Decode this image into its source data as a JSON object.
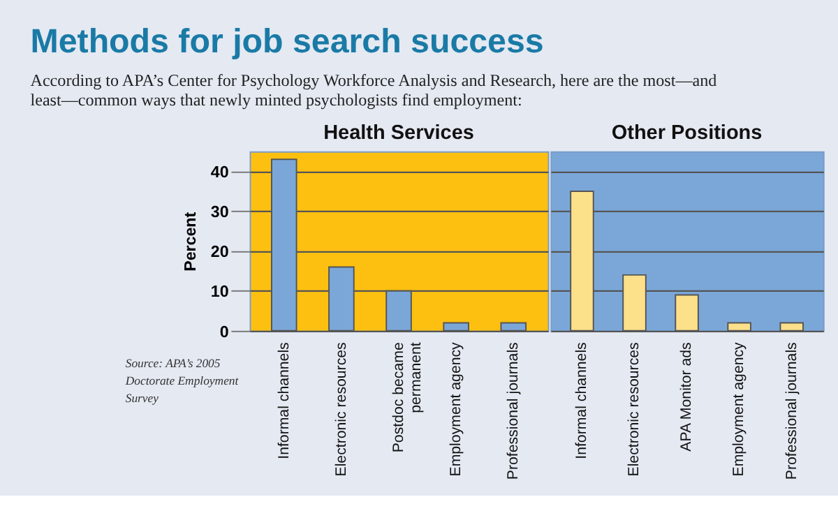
{
  "chart_data": [
    {
      "type": "bar",
      "title": "Health Services",
      "ylabel": "Percent",
      "categories": [
        "Informal channels",
        "Electronic resources",
        "Postdoc became permanent",
        "Employment agency",
        "Professional journals"
      ],
      "values": [
        43,
        16,
        10,
        2,
        2
      ],
      "color": "#7ba7d8",
      "ylim": [
        0,
        45
      ],
      "yticks": [
        0,
        10,
        20,
        30,
        40
      ],
      "grid": "y",
      "annotations": [
        "Methods for job search success",
        "According to APA’s Center for Psychology Workforce Analysis and Research, here are the most—and least—common ways that newly minted psychologists find employment:",
        "Source: APA’s 2005 Doctorate Employment Survey"
      ]
    },
    {
      "type": "bar",
      "title": "Other Positions",
      "categories": [
        "Informal channels",
        "Electronic resources",
        "APA Monitor ads",
        "Employment agency",
        "Professional journals"
      ],
      "values": [
        35,
        14,
        9,
        2,
        2
      ],
      "color": "#fde08a",
      "ylim": [
        0,
        45
      ],
      "yticks": [
        0,
        10,
        20,
        30,
        40
      ],
      "grid": "y",
      "tick_labels": "x"
    }
  ]
}
